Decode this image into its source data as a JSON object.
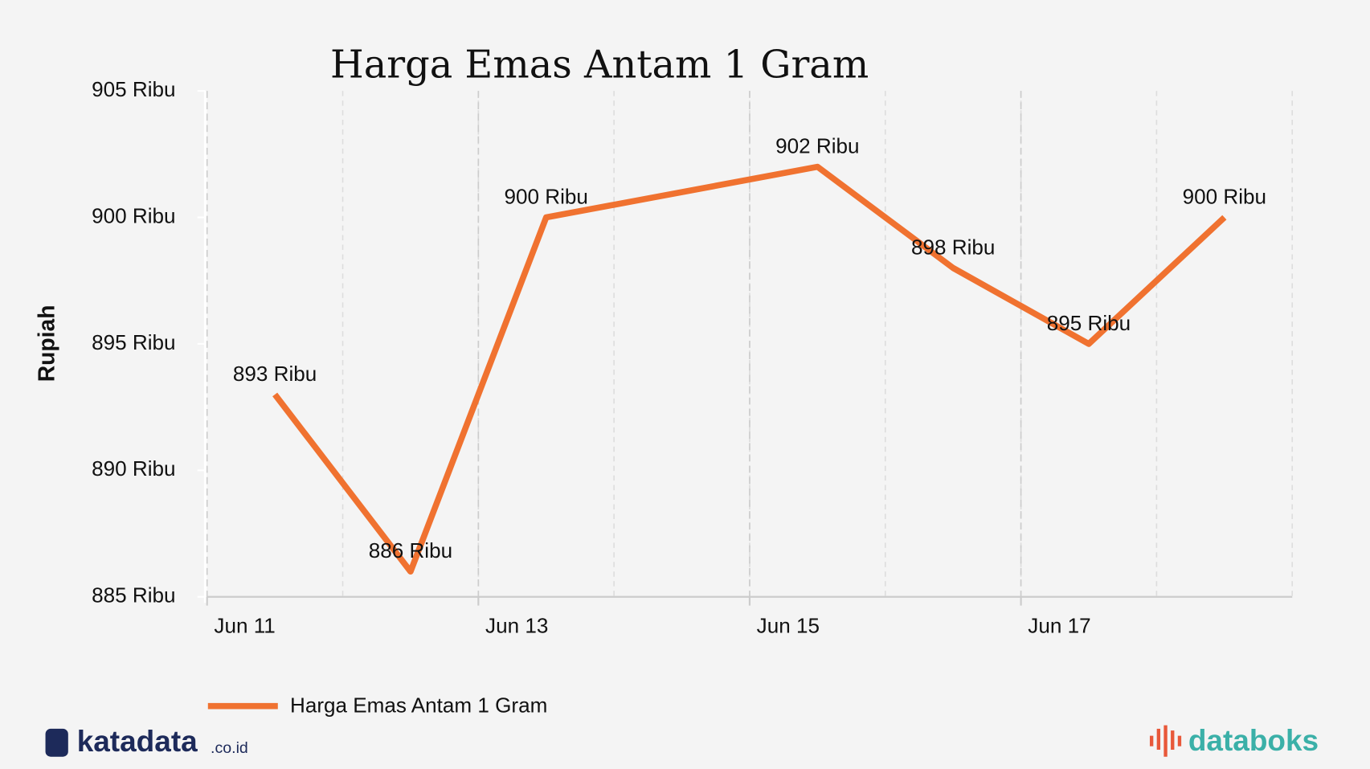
{
  "chart_data": {
    "type": "line",
    "title": "Harga Emas Antam 1 Gram",
    "ylabel": "Rupiah",
    "x": [
      "Jun 11",
      "Jun 12",
      "Jun 13",
      "Jun 15",
      "Jun 16",
      "Jun 17",
      "Jun 18"
    ],
    "xlim": [
      "Jun 11",
      "Jun 19"
    ],
    "xticks": [
      "Jun 11",
      "Jun 13",
      "Jun 15",
      "Jun 17"
    ],
    "ylim": [
      885,
      905
    ],
    "yticks": [
      {
        "value": 885,
        "label": "885 Ribu"
      },
      {
        "value": 890,
        "label": "890 Ribu"
      },
      {
        "value": 895,
        "label": "895 Ribu"
      },
      {
        "value": 900,
        "label": "900 Ribu"
      },
      {
        "value": 905,
        "label": "905 Ribu"
      }
    ],
    "grid": true,
    "series": [
      {
        "name": "Harga Emas Antam 1 Gram",
        "color": "#f07230",
        "values": [
          893,
          886,
          900,
          902,
          898,
          895,
          900
        ],
        "value_labels": [
          "893 Ribu",
          "886 Ribu",
          "900 Ribu",
          "902 Ribu",
          "898 Ribu",
          "895 Ribu",
          "900 Ribu"
        ]
      }
    ]
  },
  "branding": {
    "left": "katadata",
    "left_suffix": ".co.id",
    "right": "databoks"
  }
}
